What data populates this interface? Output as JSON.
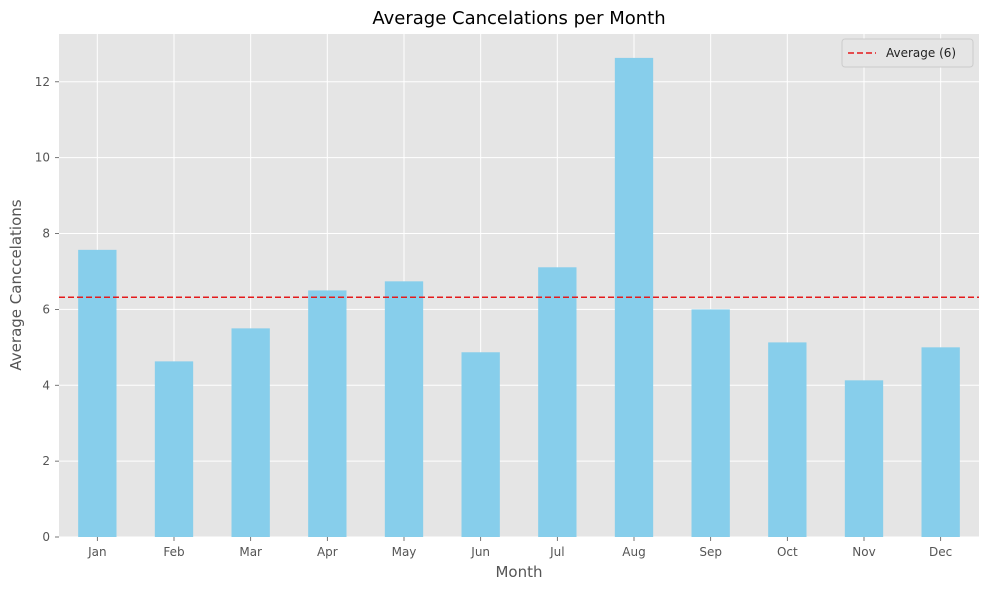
{
  "chart_data": {
    "type": "bar",
    "title": "Average Cancelations per Month",
    "xlabel": "Month",
    "ylabel": "Average Canccelations",
    "categories": [
      "Jan",
      "Feb",
      "Mar",
      "Apr",
      "May",
      "Jun",
      "Jul",
      "Aug",
      "Sep",
      "Oct",
      "Nov",
      "Dec"
    ],
    "values": [
      7.57,
      4.63,
      5.5,
      6.5,
      6.74,
      4.87,
      7.11,
      12.63,
      6.0,
      5.13,
      4.13,
      5.0
    ],
    "ylim": [
      0,
      13.26
    ],
    "yticks": [
      0,
      2,
      4,
      6,
      8,
      10,
      12
    ],
    "grid": true,
    "bar_color": "#87CEEB",
    "reference_line": {
      "label": "Average (6)",
      "value": 6.32,
      "color": "#E41A1C",
      "style": "dashed"
    },
    "legend_position": "top-right",
    "background_color": "#E5E5E5"
  }
}
